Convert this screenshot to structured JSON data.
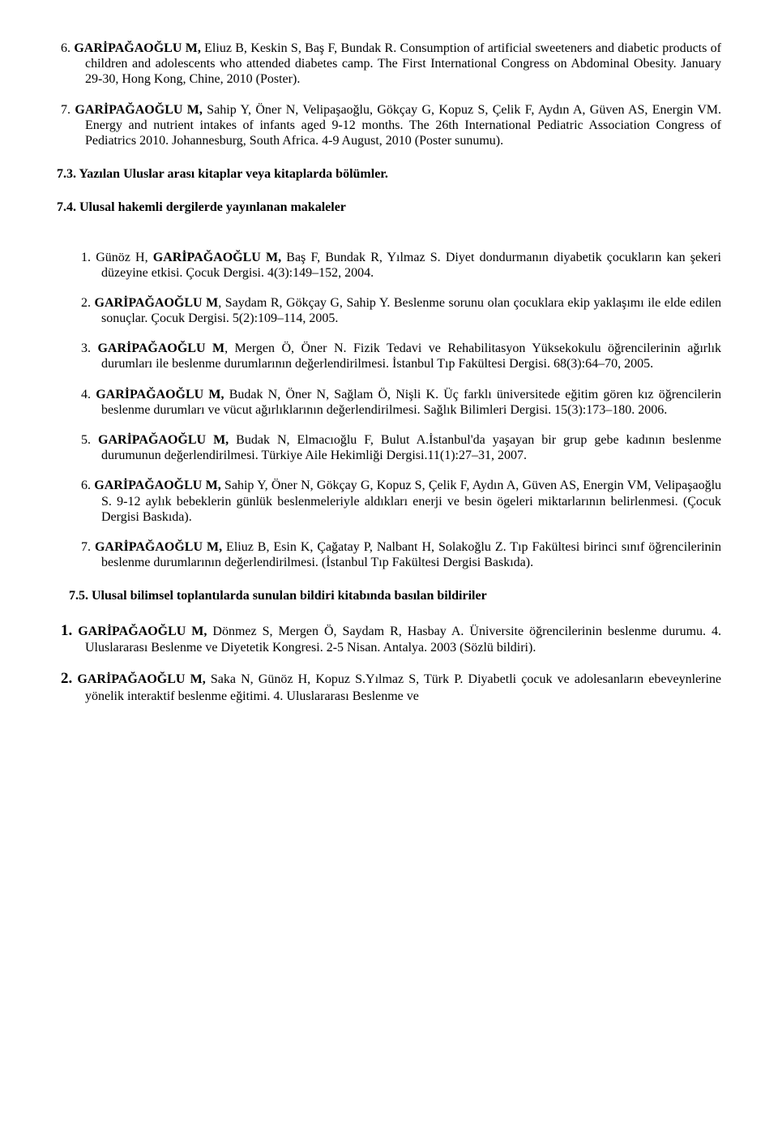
{
  "items6": [
    {
      "num": "6.",
      "boldLead": "GARİPAĞAOĞLU M,",
      "rest": " Eliuz B, Keskin S, Baş F, Bundak R. Consumption of artificial sweeteners and diabetic products of children and adolescents who attended diabetes camp. The First International Congress on Abdominal Obesity. January 29-30, Hong Kong, Chine, 2010 (Poster)."
    },
    {
      "num": "7.",
      "boldLead": "GARİPAĞAOĞLU M,",
      "rest": " Sahip Y, Öner N, Velipaşaoğlu, Gökçay G, Kopuz S, Çelik F, Aydın A, Güven AS, Energin VM. Energy and nutrient intakes of infants aged 9-12 months. The 26th International Pediatric Association Congress of Pediatrics 2010. Johannesburg, South Africa. 4-9 August, 2010 (Poster sunumu)."
    }
  ],
  "heading73": "7.3. Yazılan Uluslar arası kitaplar veya kitaplarda bölümler.",
  "heading74": "7.4. Ulusal hakemli dergilerde yayınlanan makaleler",
  "items74": [
    {
      "num": "1.",
      "pre": "Günöz H, ",
      "boldLead": "GARİPAĞAOĞLU M,",
      "rest": " Baş F, Bundak R, Yılmaz S. Diyet dondurmanın diyabetik çocukların kan şekeri düzeyine etkisi. Çocuk Dergisi. 4(3):149–152, 2004."
    },
    {
      "num": "2.",
      "pre": " ",
      "boldLead": "GARİPAĞAOĞLU M",
      "rest": ", Saydam R, Gökçay G, Sahip Y. Beslenme sorunu olan çocuklara ekip yaklaşımı ile elde edilen sonuçlar. Çocuk Dergisi. 5(2):109–114, 2005."
    },
    {
      "num": "3.",
      "pre": "",
      "boldLead": "GARİPAĞAOĞLU M",
      "rest": ", Mergen Ö, Öner N. Fizik Tedavi ve Rehabilitasyon Yüksekokulu öğrencilerinin ağırlık durumları ile beslenme durumlarının değerlendirilmesi. İstanbul Tıp Fakültesi Dergisi. 68(3):64–70, 2005."
    },
    {
      "num": "4.",
      "pre": "",
      "boldLead": "GARİPAĞAOĞLU M,",
      "rest": " Budak N, Öner N, Sağlam Ö, Nişli K. Üç farklı üniversitede eğitim gören kız öğrencilerin beslenme durumları ve vücut ağırlıklarının değerlendirilmesi. Sağlık Bilimleri Dergisi. 15(3):173–180. 2006."
    },
    {
      "num": "5.",
      "pre": "",
      "boldLead": "GARİPAĞAOĞLU M,",
      "rest": " Budak N, Elmacıoğlu F, Bulut A.İstanbul'da yaşayan bir grup gebe kadının beslenme durumunun değerlendirilmesi. Türkiye Aile Hekimliği Dergisi.11(1):27–31, 2007."
    },
    {
      "num": "6.",
      "pre": "",
      "boldLead": "GARİPAĞAOĞLU M,",
      "rest": " Sahip Y, Öner N, Gökçay G, Kopuz S, Çelik F, Aydın A, Güven AS, Energin VM, Velipaşaoğlu S. 9-12 aylık bebeklerin günlük beslenmeleriyle aldıkları enerji ve besin ögeleri miktarlarının belirlenmesi. (Çocuk Dergisi Baskıda)."
    },
    {
      "num": "7.",
      "pre": "",
      "boldLead": "GARİPAĞAOĞLU M,",
      "rest": " Eliuz B, Esin K, Çağatay P, Nalbant H, Solakoğlu Z. Tıp Fakültesi birinci sınıf öğrencilerinin beslenme durumlarının değerlendirilmesi. (İstanbul Tıp Fakültesi Dergisi Baskıda)."
    }
  ],
  "heading75": "7.5. Ulusal bilimsel toplantılarda sunulan bildiri kitabında basılan bildiriler",
  "items75": [
    {
      "num": "1.",
      "boldLead": "GARİPAĞAOĞLU M,",
      "rest": " Dönmez S, Mergen Ö, Saydam R, Hasbay A. Üniversite öğrencilerinin beslenme durumu. 4. Uluslararası Beslenme ve Diyetetik Kongresi. 2-5 Nisan. Antalya. 2003 (Sözlü bildiri)."
    },
    {
      "num": "2.",
      "boldLead": "GARİPAĞAOĞLU M,",
      "rest": " Saka N, Günöz H, Kopuz S.Yılmaz S, Türk P. Diyabetli çocuk ve adolesanların ebeveynlerine yönelik interaktif beslenme eğitimi. 4. Uluslararası Beslenme ve"
    }
  ]
}
